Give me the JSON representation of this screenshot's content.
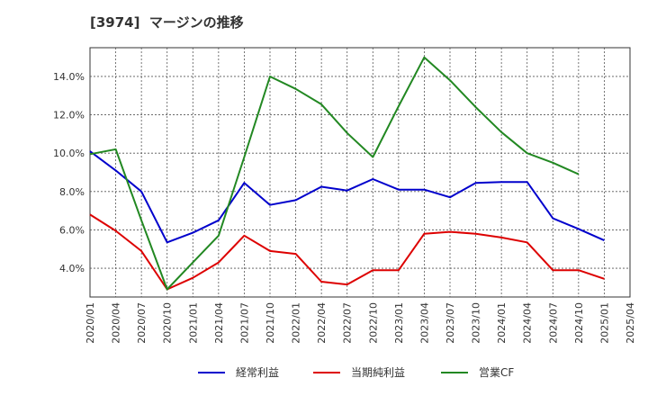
{
  "chart_data": {
    "type": "line",
    "title": "[3974]  マージンの推移",
    "x": [
      "2020/01",
      "2020/04",
      "2020/07",
      "2020/10",
      "2021/01",
      "2021/04",
      "2021/07",
      "2021/10",
      "2022/01",
      "2022/04",
      "2022/07",
      "2022/10",
      "2023/01",
      "2023/04",
      "2023/07",
      "2023/10",
      "2024/01",
      "2024/04",
      "2024/07",
      "2024/10",
      "2025/01",
      "2025/04"
    ],
    "ylim": [
      2.5,
      15.5
    ],
    "yticks": [
      4.0,
      6.0,
      8.0,
      10.0,
      12.0,
      14.0
    ],
    "ytick_labels": [
      "4.0%",
      "6.0%",
      "8.0%",
      "10.0%",
      "12.0%",
      "14.0%"
    ],
    "grid": true,
    "legend_position": "bottom",
    "series": [
      {
        "name": "経常利益",
        "color": "#0000cc",
        "values": [
          10.1,
          9.1,
          8.0,
          5.35,
          5.85,
          6.5,
          8.45,
          7.3,
          7.55,
          8.25,
          8.05,
          8.65,
          8.1,
          8.1,
          7.7,
          8.45,
          8.5,
          8.5,
          6.6,
          6.05,
          5.45,
          null
        ]
      },
      {
        "name": "当期純利益",
        "color": "#dd0000",
        "values": [
          6.8,
          5.95,
          4.9,
          2.9,
          3.5,
          4.3,
          5.7,
          4.9,
          4.75,
          3.3,
          3.15,
          3.9,
          3.9,
          5.8,
          5.9,
          5.8,
          5.6,
          5.35,
          3.9,
          3.9,
          3.45,
          null
        ]
      },
      {
        "name": "営業CF",
        "color": "#228822",
        "values": [
          9.95,
          10.2,
          6.5,
          2.9,
          4.3,
          5.7,
          9.8,
          14.0,
          13.35,
          12.55,
          11.05,
          9.8,
          12.45,
          15.0,
          13.8,
          12.4,
          11.1,
          10.0,
          9.5,
          8.9,
          null,
          null
        ]
      }
    ]
  }
}
